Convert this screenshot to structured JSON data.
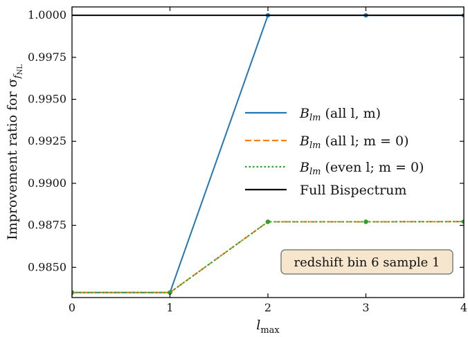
{
  "chart_data": {
    "type": "line",
    "xlabel": "l",
    "xlabel_sub": "max",
    "ylabel": "Improvement ratio for σ",
    "ylabel_sub": "f",
    "ylabel_subsub": "NL",
    "x": [
      0,
      1,
      2,
      3,
      4
    ],
    "xlim": [
      0,
      4
    ],
    "ylim": [
      0.9832,
      1.0005
    ],
    "xticks": [
      0,
      1,
      2,
      3,
      4
    ],
    "yticks": [
      0.985,
      0.9875,
      0.99,
      0.9925,
      0.995,
      0.9975,
      1.0
    ],
    "ytick_labels": [
      "0.9850",
      "0.9875",
      "0.9900",
      "0.9925",
      "0.9950",
      "0.9975",
      "1.0000"
    ],
    "grid": false,
    "legend_position": "center-right",
    "series": [
      {
        "name_main": "B",
        "name_sub": "lm",
        "name_rest": " (all l, m)",
        "color": "#1f77b4",
        "style": "solid",
        "values": [
          0.9835,
          0.9835,
          1.0,
          1.0,
          1.0
        ]
      },
      {
        "name_main": "B",
        "name_sub": "lm",
        "name_rest": " (all l; m = 0)",
        "color": "#ff7f0e",
        "style": "dashed",
        "values": [
          0.9835,
          0.9835,
          0.98771,
          0.98771,
          0.98772
        ]
      },
      {
        "name_main": "B",
        "name_sub": "lm",
        "name_rest": " (even l; m = 0)",
        "color": "#2ca02c",
        "style": "dotted",
        "values": [
          0.9835,
          0.9835,
          0.98771,
          0.98771,
          0.98772
        ]
      },
      {
        "name_main": "Full Bispectrum",
        "name_sub": "",
        "name_rest": "",
        "color": "#000000",
        "style": "solid",
        "values": [
          1.0,
          1.0,
          1.0,
          1.0,
          1.0
        ]
      }
    ],
    "annotation": "redshift bin 6 sample 1"
  }
}
